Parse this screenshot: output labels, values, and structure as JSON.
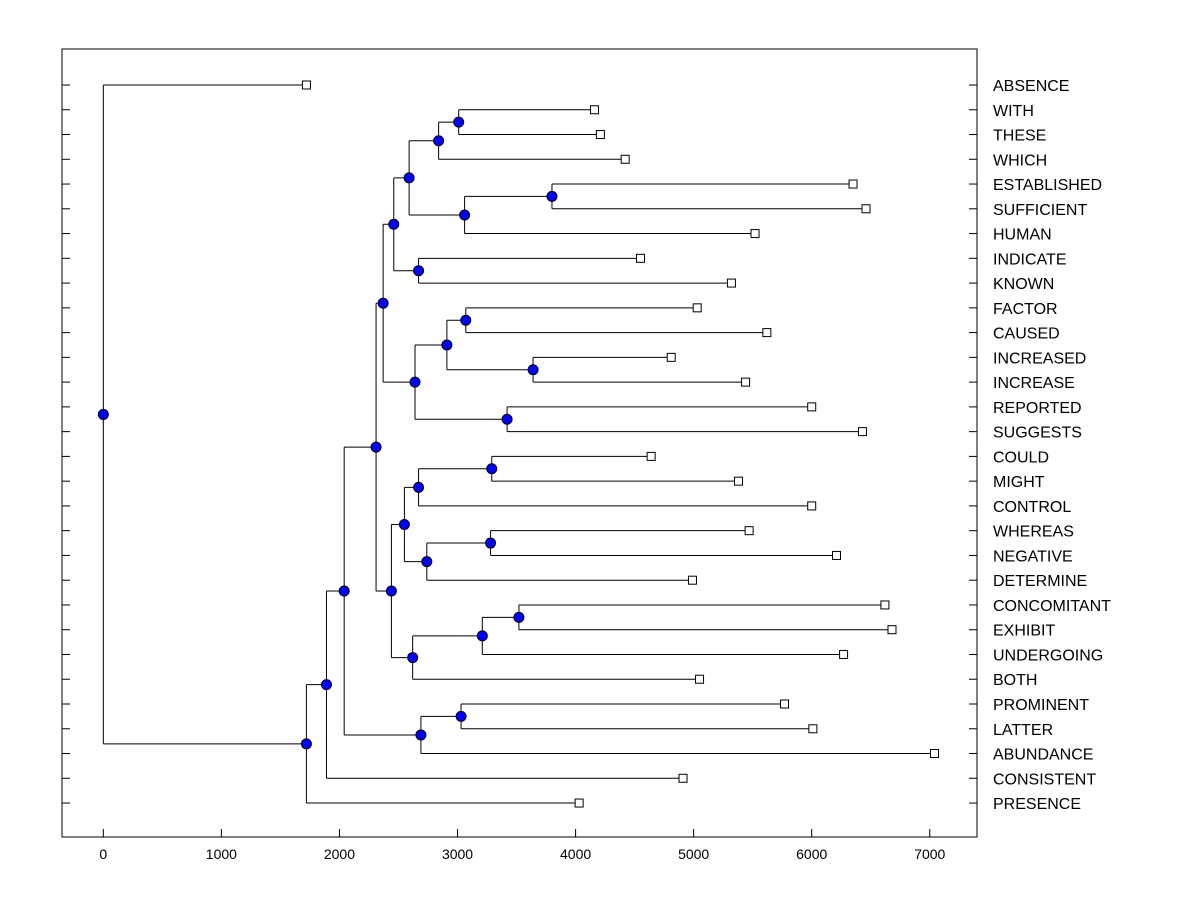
{
  "chart_data": {
    "type": "dendrogram",
    "title": "",
    "xlabel": "",
    "ylabel": "",
    "xlim": [
      -350,
      7400
    ],
    "x_ticks": [
      0,
      1000,
      2000,
      3000,
      4000,
      5000,
      6000,
      7000
    ],
    "x_tick_labels": [
      "0",
      "1000",
      "2000",
      "3000",
      "4000",
      "5000",
      "6000",
      "7000"
    ],
    "colors": {
      "node_fill": "#0000ff",
      "line": "#000000",
      "leaf_fill": "#ffffff"
    },
    "leaves": [
      {
        "label": "ABSENCE",
        "value": 1720
      },
      {
        "label": "WITH",
        "value": 4160
      },
      {
        "label": "THESE",
        "value": 4210
      },
      {
        "label": "WHICH",
        "value": 4420
      },
      {
        "label": "ESTABLISHED",
        "value": 6350
      },
      {
        "label": "SUFFICIENT",
        "value": 6460
      },
      {
        "label": "HUMAN",
        "value": 5520
      },
      {
        "label": "INDICATE",
        "value": 4550
      },
      {
        "label": "KNOWN",
        "value": 5320
      },
      {
        "label": "FACTOR",
        "value": 5030
      },
      {
        "label": "CAUSED",
        "value": 5620
      },
      {
        "label": "INCREASED",
        "value": 4810
      },
      {
        "label": "INCREASE",
        "value": 5440
      },
      {
        "label": "REPORTED",
        "value": 6000
      },
      {
        "label": "SUGGESTS",
        "value": 6430
      },
      {
        "label": "COULD",
        "value": 4640
      },
      {
        "label": "MIGHT",
        "value": 5380
      },
      {
        "label": "CONTROL",
        "value": 6000
      },
      {
        "label": "WHEREAS",
        "value": 5470
      },
      {
        "label": "NEGATIVE",
        "value": 6210
      },
      {
        "label": "DETERMINE",
        "value": 4990
      },
      {
        "label": "CONCOMITANT",
        "value": 6620
      },
      {
        "label": "EXHIBIT",
        "value": 6680
      },
      {
        "label": "UNDERGOING",
        "value": 6270
      },
      {
        "label": "BOTH",
        "value": 5050
      },
      {
        "label": "PROMINENT",
        "value": 5770
      },
      {
        "label": "LATTER",
        "value": 6010
      },
      {
        "label": "ABUNDANCE",
        "value": 7040
      },
      {
        "label": "CONSISTENT",
        "value": 4910
      },
      {
        "label": "PRESENCE",
        "value": 4030
      }
    ],
    "merges": [
      {
        "id": "n1",
        "value": 3010,
        "children": [
          "WITH",
          "THESE"
        ]
      },
      {
        "id": "n2",
        "value": 2840,
        "children": [
          "n1",
          "WHICH"
        ]
      },
      {
        "id": "n3",
        "value": 3800,
        "children": [
          "ESTABLISHED",
          "SUFFICIENT"
        ]
      },
      {
        "id": "n4",
        "value": 3060,
        "children": [
          "n3",
          "HUMAN"
        ]
      },
      {
        "id": "n5",
        "value": 2590,
        "children": [
          "n2",
          "n4"
        ]
      },
      {
        "id": "n6",
        "value": 2670,
        "children": [
          "INDICATE",
          "KNOWN"
        ]
      },
      {
        "id": "n7",
        "value": 2460,
        "children": [
          "n5",
          "n6"
        ]
      },
      {
        "id": "n8",
        "value": 3070,
        "children": [
          "FACTOR",
          "CAUSED"
        ]
      },
      {
        "id": "n9",
        "value": 3640,
        "children": [
          "INCREASED",
          "INCREASE"
        ]
      },
      {
        "id": "n10",
        "value": 2910,
        "children": [
          "n8",
          "n9"
        ]
      },
      {
        "id": "n11",
        "value": 3420,
        "children": [
          "REPORTED",
          "SUGGESTS"
        ]
      },
      {
        "id": "n12",
        "value": 2640,
        "children": [
          "n10",
          "n11"
        ]
      },
      {
        "id": "n13",
        "value": 2370,
        "children": [
          "n7",
          "n12"
        ]
      },
      {
        "id": "n14",
        "value": 3290,
        "children": [
          "COULD",
          "MIGHT"
        ]
      },
      {
        "id": "n15",
        "value": 2670,
        "children": [
          "n14",
          "CONTROL"
        ]
      },
      {
        "id": "n16",
        "value": 3280,
        "children": [
          "WHEREAS",
          "NEGATIVE"
        ]
      },
      {
        "id": "n17",
        "value": 2740,
        "children": [
          "n16",
          "DETERMINE"
        ]
      },
      {
        "id": "n18",
        "value": 2550,
        "children": [
          "n15",
          "n17"
        ]
      },
      {
        "id": "n19",
        "value": 3520,
        "children": [
          "CONCOMITANT",
          "EXHIBIT"
        ]
      },
      {
        "id": "n20",
        "value": 3210,
        "children": [
          "n19",
          "UNDERGOING"
        ]
      },
      {
        "id": "n21",
        "value": 2620,
        "children": [
          "n20",
          "BOTH"
        ]
      },
      {
        "id": "n22",
        "value": 2440,
        "children": [
          "n18",
          "n21"
        ]
      },
      {
        "id": "n23",
        "value": 2310,
        "children": [
          "n13",
          "n22"
        ]
      },
      {
        "id": "n24",
        "value": 3030,
        "children": [
          "PROMINENT",
          "LATTER"
        ]
      },
      {
        "id": "n25",
        "value": 2690,
        "children": [
          "n24",
          "ABUNDANCE"
        ]
      },
      {
        "id": "n26",
        "value": 2040,
        "children": [
          "n23",
          "n25"
        ]
      },
      {
        "id": "n27",
        "value": 1890,
        "children": [
          "n26",
          "CONSISTENT"
        ]
      },
      {
        "id": "n28",
        "value": 1720,
        "children": [
          "n27",
          "PRESENCE"
        ]
      },
      {
        "id": "n29",
        "value": 0,
        "children": [
          "ABSENCE",
          "n28"
        ]
      }
    ]
  }
}
